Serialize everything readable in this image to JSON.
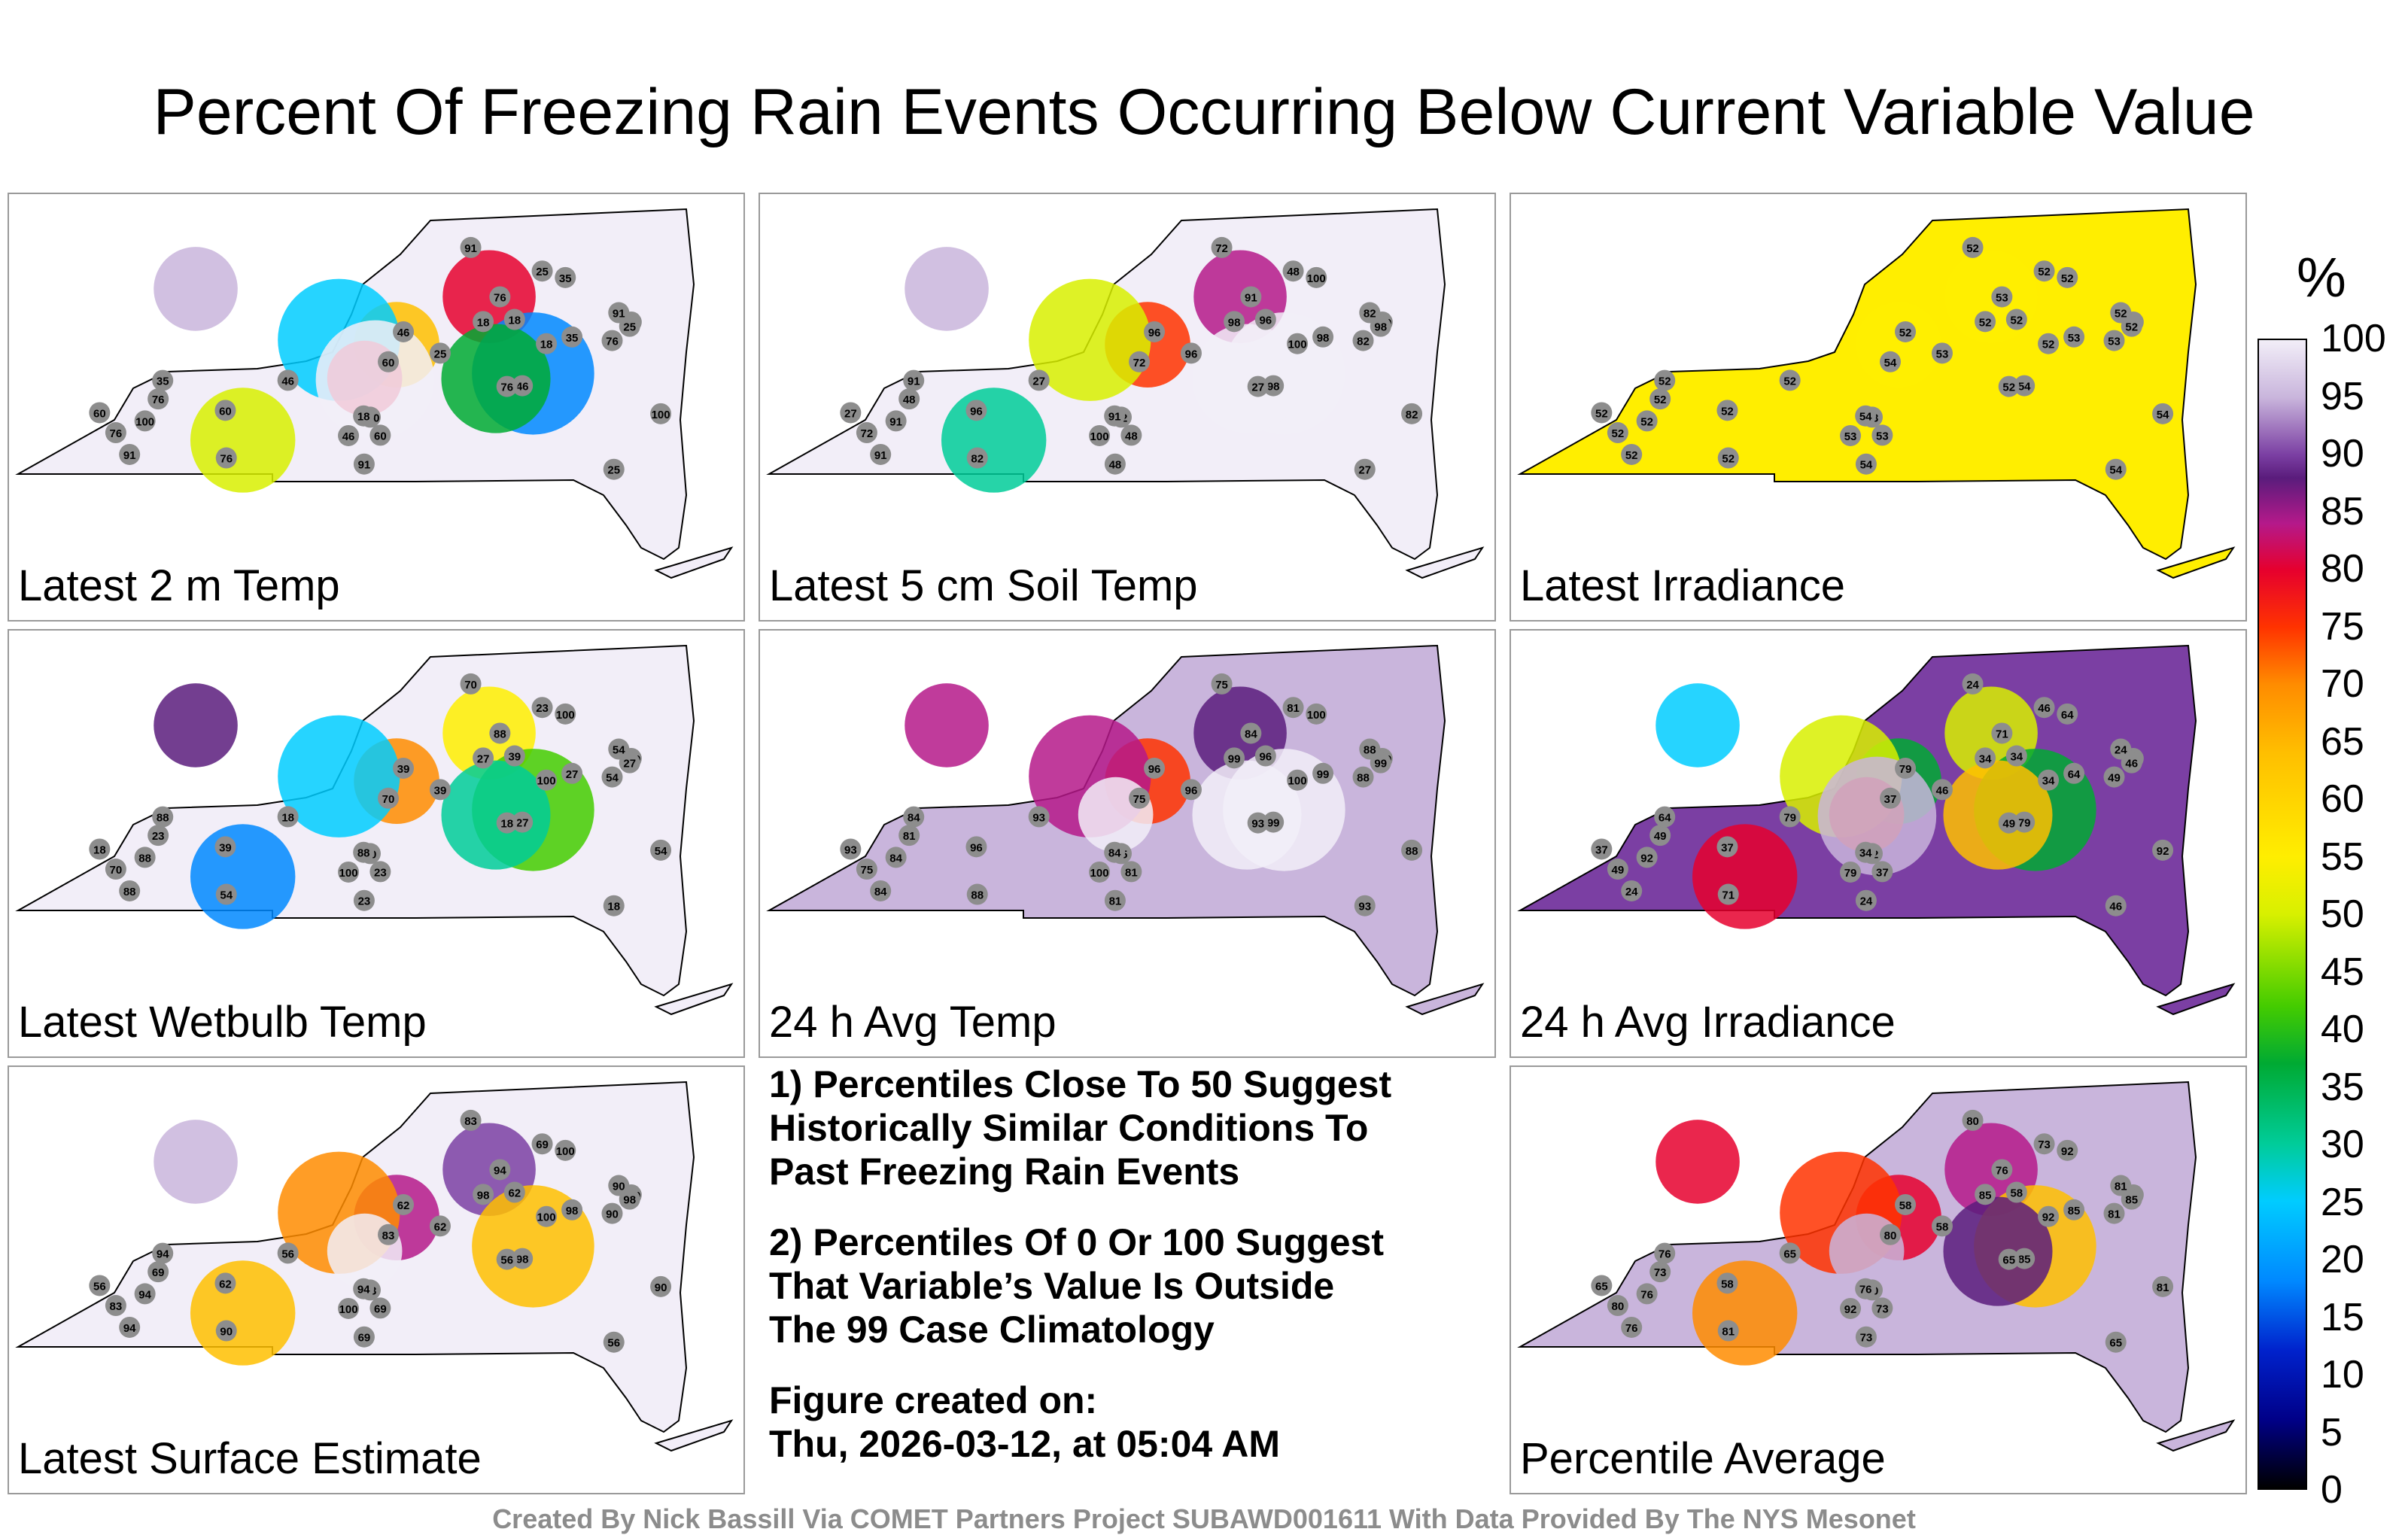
{
  "title": "Percent Of Freezing Rain Events Occurring Below Current Variable Value",
  "panels": [
    {
      "label": "Latest 2 m Temp",
      "base_value": 99,
      "sample_values": [
        91,
        76,
        60,
        25,
        46,
        18,
        35,
        76,
        100
      ]
    },
    {
      "label": "Latest 5 cm Soil Temp",
      "base_value": 100,
      "sample_values": [
        91,
        82,
        72,
        48,
        27,
        96,
        98,
        100
      ]
    },
    {
      "label": "Latest Irradiance",
      "base_value": 52,
      "sample_values": [
        52,
        53,
        54,
        52,
        52
      ]
    },
    {
      "label": "Latest Wetbulb Temp",
      "base_value": 100,
      "sample_values": [
        88,
        54,
        70,
        23,
        18,
        39,
        27,
        100
      ]
    },
    {
      "label": "24 h Avg Temp",
      "base_value": 93,
      "sample_values": [
        84,
        88,
        75,
        81,
        93,
        96,
        99,
        100
      ]
    },
    {
      "label": "24 h Avg Irradiance",
      "base_value": 89,
      "sample_values": [
        24,
        49,
        37,
        46,
        79,
        34,
        64,
        71,
        92
      ]
    },
    {
      "label": "Latest Surface Estimate",
      "base_value": 98,
      "sample_values": [
        94,
        90,
        83,
        69,
        56,
        62,
        98,
        100
      ]
    },
    {
      "label": "Percentile Average",
      "base_value": 91,
      "sample_values": [
        76,
        81,
        80,
        73,
        65,
        58,
        85,
        92
      ]
    }
  ],
  "notes": {
    "note1": "1) Percentiles Close To 50 Suggest\nHistorically Similar Conditions To\nPast Freezing Rain Events",
    "note2": "2) Percentiles Of 0 Or 100 Suggest\nThat Variable’s Value Is Outside\nThe 99 Case Climatology",
    "created_label": "Figure created on:",
    "created_date": "Thu, 2026-03-12, at 05:04 AM"
  },
  "colorbar": {
    "unit": "%",
    "ticks": [
      "100",
      "95",
      "90",
      "85",
      "80",
      "75",
      "70",
      "65",
      "60",
      "55",
      "50",
      "45",
      "40",
      "35",
      "30",
      "25",
      "20",
      "15",
      "10",
      "5",
      "0"
    ]
  },
  "footer": "Created By Nick Bassill Via COMET Partners Project SUBAWD001611 With Data Provided By The NYS Mesonet"
}
